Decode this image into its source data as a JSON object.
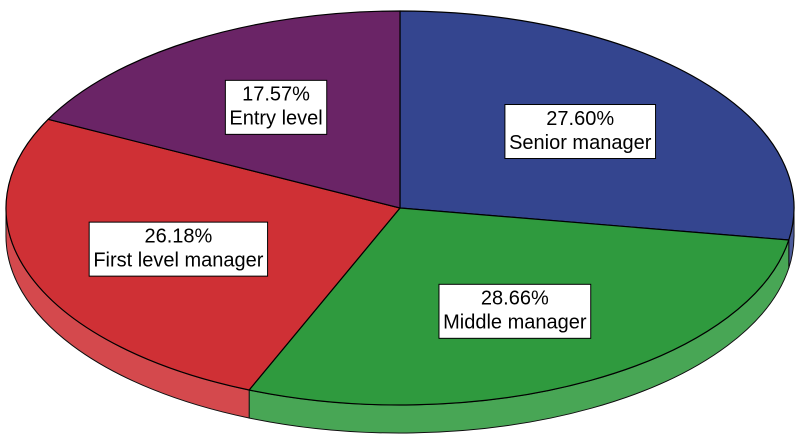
{
  "chart_data": {
    "type": "pie",
    "categories": [
      "Senior manager",
      "Middle manager",
      "First level manager",
      "Entry level"
    ],
    "values": [
      27.6,
      28.66,
      26.18,
      17.57
    ],
    "value_labels": [
      "27.60%",
      "28.66%",
      "26.18%",
      "17.57%"
    ],
    "colors": [
      "#34458f",
      "#2f9a3e",
      "#cf3035",
      "#6a2466"
    ]
  }
}
